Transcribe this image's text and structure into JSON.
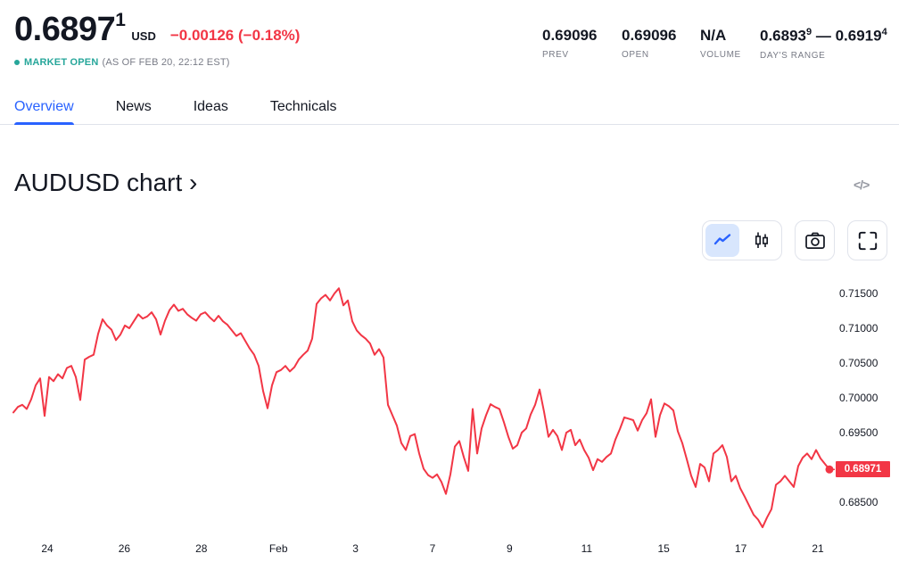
{
  "theme": {
    "dark": "#131722",
    "gray": "#787b86",
    "blue": "#2962ff",
    "red": "#f23645",
    "teal": "#26a69a",
    "border": "#e0e3eb",
    "active_segment_bg": "#d8e6fd"
  },
  "header": {
    "price_main": "0.6897",
    "price_sup": "1",
    "currency": "USD",
    "change": "−0.00126 (−0.18%)",
    "market_status": "MARKET OPEN",
    "market_status_detail": "(AS OF FEB 20, 22:12 EST)",
    "stats": {
      "prev": {
        "value": "0.69096",
        "label": "PREV"
      },
      "open": {
        "value": "0.69096",
        "label": "OPEN"
      },
      "volume": {
        "value": "N/A",
        "label": "VOLUME"
      },
      "range": {
        "low": "0.6893",
        "low_sup": "9",
        "dash": " — ",
        "high": "0.6919",
        "high_sup": "4",
        "label": "DAY'S RANGE"
      }
    }
  },
  "tabs": [
    {
      "label": "Overview",
      "active": true
    },
    {
      "label": "News",
      "active": false
    },
    {
      "label": "Ideas",
      "active": false
    },
    {
      "label": "Technicals",
      "active": false
    }
  ],
  "section": {
    "title": "AUDUSD chart ›",
    "embed_icon_text": "</>"
  },
  "chart_data": {
    "type": "line",
    "title": "AUDUSD chart",
    "xlabel": "",
    "ylabel": "",
    "symbol": "AUDUSD",
    "line_color": "#f23645",
    "grid": false,
    "legend_position": "none",
    "last_price": 0.68971,
    "last_price_label": "0.68971",
    "ylim": [
      0.68026,
      0.71744
    ],
    "y_ticks": [
      {
        "price": 0.715,
        "label": "0.71500"
      },
      {
        "price": 0.71,
        "label": "0.71000"
      },
      {
        "price": 0.705,
        "label": "0.70500"
      },
      {
        "price": 0.7,
        "label": "0.70000"
      },
      {
        "price": 0.695,
        "label": "0.69500"
      },
      {
        "price": 0.685,
        "label": "0.68500"
      }
    ],
    "x_ticks": [
      "24",
      "26",
      "28",
      "Feb",
      "3",
      "7",
      "9",
      "11",
      "15",
      "17",
      "21"
    ],
    "prices": [
      0.6979,
      0.6987,
      0.699,
      0.6984,
      0.6998,
      0.7018,
      0.7028,
      0.6974,
      0.703,
      0.7024,
      0.7034,
      0.7028,
      0.7043,
      0.7046,
      0.703,
      0.6997,
      0.7055,
      0.7059,
      0.7062,
      0.7092,
      0.7113,
      0.7104,
      0.7098,
      0.7083,
      0.7091,
      0.7104,
      0.71,
      0.711,
      0.712,
      0.7114,
      0.7117,
      0.7123,
      0.7113,
      0.7091,
      0.7111,
      0.7126,
      0.7134,
      0.7125,
      0.7128,
      0.712,
      0.7115,
      0.7111,
      0.712,
      0.7123,
      0.7116,
      0.711,
      0.7118,
      0.711,
      0.7105,
      0.7097,
      0.7089,
      0.7093,
      0.7082,
      0.7071,
      0.7062,
      0.7046,
      0.701,
      0.6985,
      0.7018,
      0.7037,
      0.704,
      0.7046,
      0.7038,
      0.7044,
      0.7055,
      0.7062,
      0.7068,
      0.7085,
      0.7135,
      0.7143,
      0.7148,
      0.714,
      0.715,
      0.71575,
      0.7133,
      0.714,
      0.711,
      0.7097,
      0.709,
      0.7085,
      0.7078,
      0.7062,
      0.707,
      0.7058,
      0.699,
      0.6975,
      0.696,
      0.6935,
      0.6925,
      0.6945,
      0.6948,
      0.692,
      0.6898,
      0.6889,
      0.6885,
      0.689,
      0.6879,
      0.6862,
      0.689,
      0.693,
      0.6938,
      0.6915,
      0.6895,
      0.6984,
      0.692,
      0.6956,
      0.6975,
      0.6991,
      0.6987,
      0.6984,
      0.6965,
      0.6944,
      0.6927,
      0.6932,
      0.695,
      0.6956,
      0.6976,
      0.699,
      0.7012,
      0.698,
      0.6944,
      0.6954,
      0.6945,
      0.6925,
      0.695,
      0.6954,
      0.6932,
      0.694,
      0.6925,
      0.6914,
      0.6896,
      0.6912,
      0.6908,
      0.6915,
      0.692,
      0.694,
      0.6955,
      0.6972,
      0.697,
      0.6968,
      0.6953,
      0.6968,
      0.6978,
      0.6998,
      0.6944,
      0.6975,
      0.6992,
      0.6988,
      0.6982,
      0.6952,
      0.6935,
      0.6912,
      0.6888,
      0.6872,
      0.6905,
      0.69,
      0.688,
      0.692,
      0.6925,
      0.6932,
      0.6915,
      0.688,
      0.6888,
      0.687,
      0.6858,
      0.6845,
      0.6832,
      0.6825,
      0.6814,
      0.6828,
      0.684,
      0.6875,
      0.688,
      0.6888,
      0.688,
      0.6872,
      0.6902,
      0.6914,
      0.692,
      0.6912,
      0.6925,
      0.6913,
      0.6905,
      0.68971
    ]
  }
}
